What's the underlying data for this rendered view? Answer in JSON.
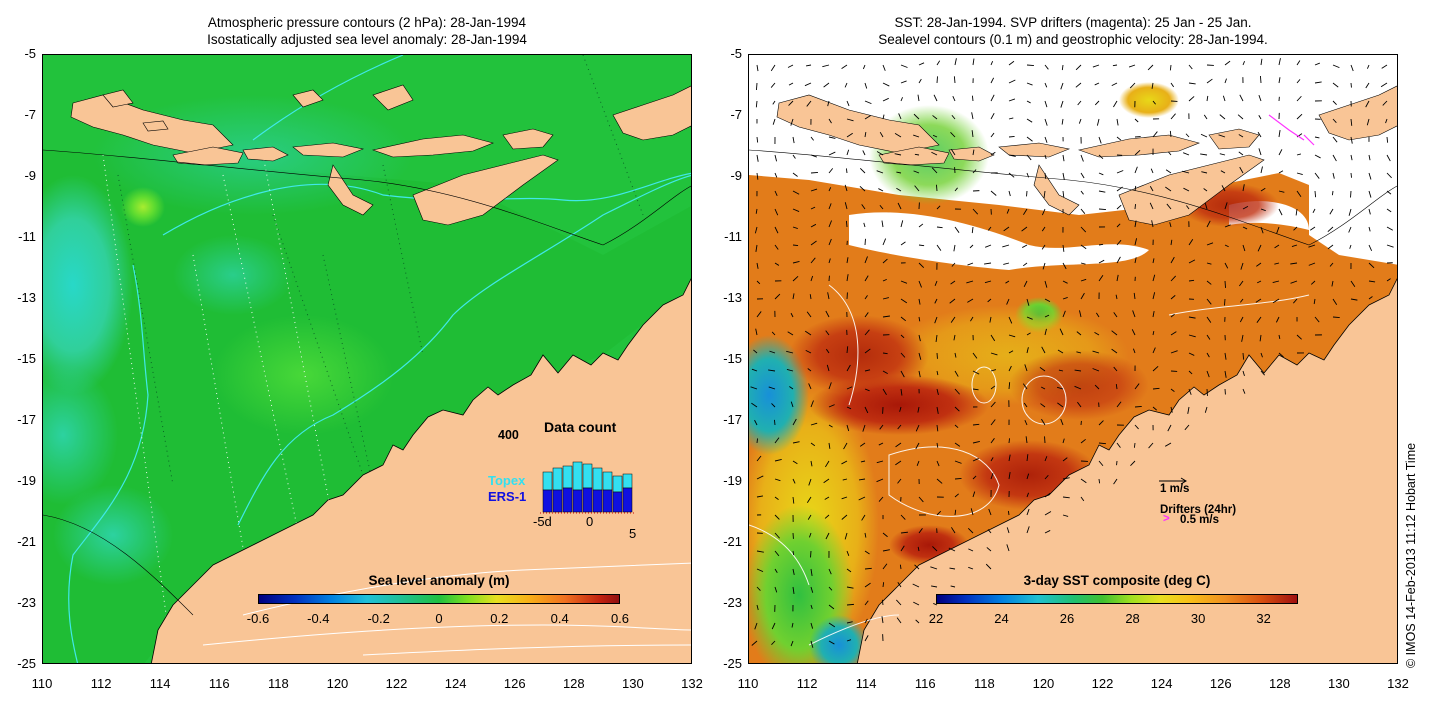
{
  "left_panel": {
    "title_line1": "Atmospheric pressure contours (2 hPa): 28-Jan-1994",
    "title_line2": "Isostatically adjusted sea level anomaly: 28-Jan-1994",
    "colorbar": {
      "title": "Sea level anomaly (m)",
      "labels": [
        "-0.6",
        "-0.4",
        "-0.2",
        "0",
        "0.2",
        "0.4",
        "0.6"
      ]
    },
    "inset": {
      "title": "Data count",
      "y_label": "400",
      "legend_topex": "Topex",
      "legend_ers1": "ERS-1",
      "x_labels": [
        "-5d",
        "0",
        "5"
      ],
      "topex_color": "#33e0f0",
      "ers1_color": "#1010e0"
    }
  },
  "right_panel": {
    "title_line1": "SST: 28-Jan-1994. SVP drifters (magenta): 25 Jan - 25 Jan.",
    "title_line2": "Sealevel contours (0.1 m) and geostrophic velocity: 28-Jan-1994.",
    "colorbar": {
      "title": "3-day SST composite (deg C)",
      "labels": [
        "22",
        "24",
        "26",
        "28",
        "30",
        "32"
      ]
    },
    "velocity_legend": "1 m/s",
    "drifters_legend": "Drifters (24hr)",
    "drifters_speed": "0.5 m/s",
    "drifter_color": "#ff33ff"
  },
  "axes": {
    "y_ticks": [
      "-5",
      "-7",
      "-9",
      "-11",
      "-13",
      "-15",
      "-17",
      "-19",
      "-21",
      "-23",
      "-25"
    ],
    "x_ticks": [
      "110",
      "112",
      "114",
      "116",
      "118",
      "120",
      "122",
      "124",
      "126",
      "128",
      "130",
      "132"
    ]
  },
  "colors": {
    "land": "#f9c596",
    "ocean_sla": "#22c832",
    "sst_warm": "#e07818"
  },
  "copyright": "© IMOS 14-Feb-2013 11:12 Hobart Time"
}
